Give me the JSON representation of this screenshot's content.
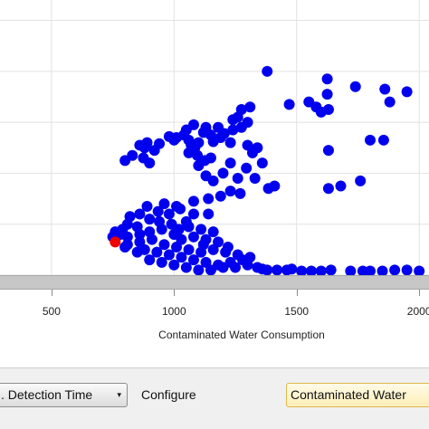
{
  "chart_data": {
    "type": "scatter",
    "title": "",
    "xlabel": "Contaminated Water Consumption",
    "ylabel": "",
    "xlim": [
      290,
      2040
    ],
    "ylim": [
      0,
      5.4
    ],
    "xticks": [
      500,
      1000,
      1500,
      2000
    ],
    "xtick_labels": [
      "500",
      "1000",
      "1500",
      "2000"
    ],
    "grid": true,
    "colors": {
      "points": "#0000ee",
      "highlight": "#ee0000",
      "grid": "#e2e2e2"
    },
    "series": [
      {
        "color": "#0000ee",
        "points": [
          [
            1380,
            4.0
          ],
          [
            1625,
            3.85
          ],
          [
            1740,
            3.7
          ],
          [
            1860,
            3.65
          ],
          [
            1950,
            3.6
          ],
          [
            1625,
            3.55
          ],
          [
            1550,
            3.4
          ],
          [
            1880,
            3.4
          ],
          [
            1470,
            3.35
          ],
          [
            1580,
            3.3
          ],
          [
            1630,
            3.25
          ],
          [
            1310,
            3.3
          ],
          [
            1600,
            3.2
          ],
          [
            1275,
            3.25
          ],
          [
            1260,
            3.1
          ],
          [
            1240,
            3.05
          ],
          [
            1300,
            3.0
          ],
          [
            1080,
            2.95
          ],
          [
            1130,
            2.9
          ],
          [
            1180,
            2.9
          ],
          [
            1050,
            2.85
          ],
          [
            1240,
            2.85
          ],
          [
            1275,
            2.9
          ],
          [
            1120,
            2.8
          ],
          [
            1205,
            2.78
          ],
          [
            1040,
            2.75
          ],
          [
            1150,
            2.75
          ],
          [
            1010,
            2.7
          ],
          [
            1190,
            2.7
          ],
          [
            980,
            2.72
          ],
          [
            1000,
            2.65
          ],
          [
            1060,
            2.65
          ],
          [
            1100,
            2.6
          ],
          [
            1160,
            2.62
          ],
          [
            890,
            2.6
          ],
          [
            1230,
            2.6
          ],
          [
            860,
            2.55
          ],
          [
            940,
            2.58
          ],
          [
            1070,
            2.55
          ],
          [
            1300,
            2.55
          ],
          [
            1340,
            2.5
          ],
          [
            880,
            2.5
          ],
          [
            920,
            2.45
          ],
          [
            1085,
            2.5
          ],
          [
            1800,
            2.65
          ],
          [
            1855,
            2.65
          ],
          [
            1630,
            2.45
          ],
          [
            1060,
            2.4
          ],
          [
            1095,
            2.35
          ],
          [
            1150,
            2.3
          ],
          [
            1320,
            2.4
          ],
          [
            830,
            2.35
          ],
          [
            875,
            2.3
          ],
          [
            800,
            2.25
          ],
          [
            1125,
            2.25
          ],
          [
            900,
            2.2
          ],
          [
            1230,
            2.2
          ],
          [
            1360,
            2.2
          ],
          [
            1100,
            2.15
          ],
          [
            1200,
            2.0
          ],
          [
            1295,
            2.1
          ],
          [
            1130,
            1.95
          ],
          [
            1260,
            1.9
          ],
          [
            1160,
            1.85
          ],
          [
            1330,
            1.9
          ],
          [
            1385,
            1.7
          ],
          [
            1410,
            1.75
          ],
          [
            1230,
            1.65
          ],
          [
            1270,
            1.6
          ],
          [
            1190,
            1.55
          ],
          [
            1140,
            1.5
          ],
          [
            1080,
            1.45
          ],
          [
            1010,
            1.35
          ],
          [
            1760,
            1.85
          ],
          [
            1630,
            1.7
          ],
          [
            1680,
            1.75
          ],
          [
            960,
            1.4
          ],
          [
            1025,
            1.3
          ],
          [
            890,
            1.35
          ],
          [
            935,
            1.25
          ],
          [
            980,
            1.2
          ],
          [
            860,
            1.2
          ],
          [
            820,
            1.15
          ],
          [
            900,
            1.1
          ],
          [
            940,
            1.05
          ],
          [
            990,
            1.0
          ],
          [
            1050,
            1.05
          ],
          [
            1080,
            1.2
          ],
          [
            1140,
            1.2
          ],
          [
            1060,
            0.95
          ],
          [
            1110,
            0.9
          ],
          [
            1160,
            0.85
          ],
          [
            810,
            1.0
          ],
          [
            850,
            0.95
          ],
          [
            790,
            0.9
          ],
          [
            780,
            0.8
          ],
          [
            760,
            0.85
          ],
          [
            810,
            0.75
          ],
          [
            860,
            0.8
          ],
          [
            900,
            0.85
          ],
          [
            950,
            0.9
          ],
          [
            1000,
            0.8
          ],
          [
            1030,
            0.7
          ],
          [
            1080,
            0.75
          ],
          [
            1130,
            0.7
          ],
          [
            1180,
            0.65
          ],
          [
            760,
            0.7
          ],
          [
            810,
            0.6
          ],
          [
            860,
            0.65
          ],
          [
            910,
            0.7
          ],
          [
            960,
            0.6
          ],
          [
            1010,
            0.55
          ],
          [
            1060,
            0.5
          ],
          [
            1110,
            0.45
          ],
          [
            1160,
            0.5
          ],
          [
            1210,
            0.45
          ],
          [
            880,
            0.5
          ],
          [
            930,
            0.45
          ],
          [
            980,
            0.4
          ],
          [
            1030,
            0.35
          ],
          [
            1080,
            0.3
          ],
          [
            1130,
            0.25
          ],
          [
            1180,
            0.2
          ],
          [
            1230,
            0.25
          ],
          [
            1260,
            0.4
          ],
          [
            1310,
            0.35
          ],
          [
            1000,
            0.2
          ],
          [
            1050,
            0.15
          ],
          [
            1100,
            0.1
          ],
          [
            1150,
            0.1
          ],
          [
            1200,
            0.15
          ],
          [
            1250,
            0.15
          ],
          [
            1300,
            0.2
          ],
          [
            750,
            0.75
          ],
          [
            800,
            0.55
          ],
          [
            850,
            0.45
          ],
          [
            900,
            0.3
          ],
          [
            950,
            0.25
          ],
          [
            1020,
            0.9
          ],
          [
            1120,
            0.6
          ],
          [
            1220,
            0.55
          ],
          [
            1280,
            0.3
          ],
          [
            1340,
            0.15
          ],
          [
            1380,
            0.1
          ],
          [
            1420,
            0.1
          ],
          [
            1460,
            0.1
          ],
          [
            1520,
            0.08
          ],
          [
            1560,
            0.08
          ],
          [
            1600,
            0.08
          ],
          [
            1640,
            0.1
          ],
          [
            1720,
            0.08
          ],
          [
            1770,
            0.08
          ],
          [
            1800,
            0.08
          ],
          [
            1850,
            0.08
          ],
          [
            1900,
            0.1
          ],
          [
            1950,
            0.1
          ],
          [
            2000,
            0.08
          ],
          [
            1480,
            0.12
          ],
          [
            1360,
            0.12
          ]
        ]
      },
      {
        "color": "#ee0000",
        "points": [
          [
            760,
            0.65
          ]
        ]
      }
    ]
  },
  "toolbar": {
    "left_combo_label": ". Detection Time",
    "left_combo_arrow": "▾",
    "configure_label": "Configure",
    "right_combo_label": "Contaminated Water"
  }
}
